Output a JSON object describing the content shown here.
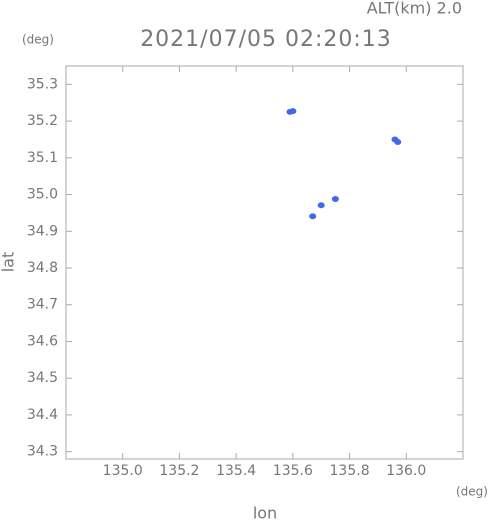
{
  "chart_data": {
    "type": "scatter",
    "title": "2021/07/05 02:20:13",
    "subtitle": "ALT(km) 2.0",
    "y_unit": "(deg)",
    "x_unit": "(deg)",
    "xlabel": "lon",
    "ylabel": "lat",
    "x": [
      135.59,
      135.6,
      135.97,
      135.96,
      135.75,
      135.7,
      135.67
    ],
    "values": [
      35.225,
      35.227,
      35.143,
      35.15,
      34.988,
      34.971,
      34.941
    ],
    "color": "#4169e1",
    "xlim": [
      134.8,
      136.2
    ],
    "ylim": [
      34.28,
      35.35
    ],
    "xticks": [
      {
        "value": 135,
        "label": "135.0"
      },
      135.2,
      135.4,
      135.6,
      135.8,
      {
        "value": 136,
        "label": "136.0"
      }
    ],
    "yticks": [
      35.3,
      35.2,
      35.1,
      {
        "value": 35,
        "label": "35.0"
      },
      34.9,
      34.8,
      34.7,
      34.6,
      34.5,
      34.4,
      34.3
    ]
  }
}
